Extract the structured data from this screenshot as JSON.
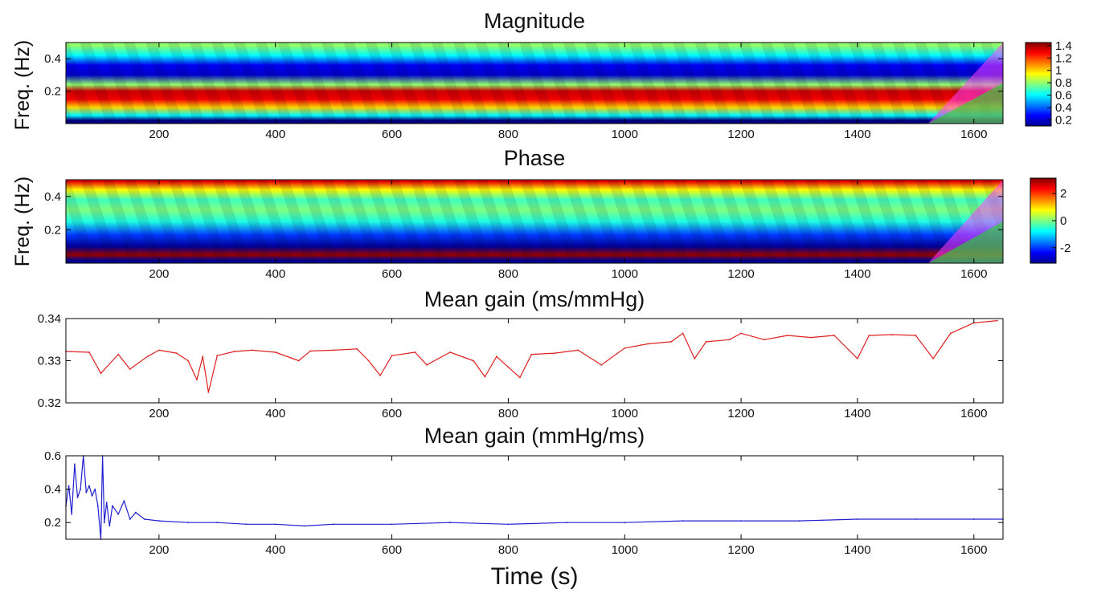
{
  "chart_data": [
    {
      "type": "heatmap",
      "title": "Magnitude",
      "ylabel": "Freq. (Hz)",
      "xlim": [
        40,
        1650
      ],
      "ylim": [
        0,
        0.5
      ],
      "xticks": [
        200,
        400,
        600,
        800,
        1000,
        1200,
        1400,
        1600
      ],
      "yticks": [
        0.2,
        0.4
      ],
      "bands": [
        {
          "freq": 0.02,
          "value": 0.1
        },
        {
          "freq": 0.05,
          "value": 0.6
        },
        {
          "freq": 0.1,
          "value": 1.0
        },
        {
          "freq": 0.15,
          "value": 1.3
        },
        {
          "freq": 0.2,
          "value": 1.35
        },
        {
          "freq": 0.24,
          "value": 0.8
        },
        {
          "freq": 0.3,
          "value": 0.2
        },
        {
          "freq": 0.36,
          "value": 0.25
        },
        {
          "freq": 0.42,
          "value": 0.6
        },
        {
          "freq": 0.48,
          "value": 0.8
        }
      ],
      "colorbar": {
        "ticks": [
          "1.4",
          "1.2",
          "1",
          "0.8",
          "0.6",
          "0.4",
          "0.2"
        ],
        "min": 0.1,
        "max": 1.45
      }
    },
    {
      "type": "heatmap",
      "title": "Phase",
      "ylabel": "Freq. (Hz)",
      "xlim": [
        40,
        1650
      ],
      "ylim": [
        0,
        0.5
      ],
      "xticks": [
        200,
        400,
        600,
        800,
        1000,
        1200,
        1400,
        1600
      ],
      "yticks": [
        0.2,
        0.4
      ],
      "bands": [
        {
          "freq": 0.015,
          "value": -3.0
        },
        {
          "freq": 0.05,
          "value": 3.0
        },
        {
          "freq": 0.1,
          "value": -3.0
        },
        {
          "freq": 0.17,
          "value": -2.0
        },
        {
          "freq": 0.25,
          "value": -0.6
        },
        {
          "freq": 0.32,
          "value": 0.0
        },
        {
          "freq": 0.38,
          "value": -0.4
        },
        {
          "freq": 0.44,
          "value": 0.8
        },
        {
          "freq": 0.49,
          "value": 2.5
        }
      ],
      "colorbar": {
        "ticks": [
          "2",
          "0",
          "-2"
        ],
        "tick_values": [
          2,
          0,
          -2
        ],
        "min": -3.14,
        "max": 3.14
      }
    },
    {
      "type": "line",
      "title": "Mean gain (ms/mmHg)",
      "xlim": [
        40,
        1650
      ],
      "ylim": [
        0.32,
        0.34
      ],
      "xticks": [
        200,
        400,
        600,
        800,
        1000,
        1200,
        1400,
        1600
      ],
      "yticks": [
        0.32,
        0.33,
        0.34
      ],
      "color": "#e02020",
      "x": [
        40,
        80,
        100,
        130,
        150,
        180,
        200,
        230,
        250,
        265,
        275,
        285,
        300,
        330,
        360,
        400,
        440,
        460,
        500,
        540,
        560,
        580,
        600,
        640,
        660,
        700,
        740,
        760,
        780,
        800,
        820,
        840,
        880,
        920,
        960,
        1000,
        1040,
        1080,
        1100,
        1120,
        1140,
        1180,
        1200,
        1240,
        1280,
        1320,
        1360,
        1400,
        1420,
        1460,
        1500,
        1530,
        1560,
        1600,
        1640
      ],
      "values": [
        0.3322,
        0.332,
        0.327,
        0.3315,
        0.328,
        0.331,
        0.3325,
        0.3318,
        0.33,
        0.3255,
        0.331,
        0.3225,
        0.3312,
        0.3322,
        0.3325,
        0.332,
        0.33,
        0.3323,
        0.3325,
        0.3328,
        0.33,
        0.3265,
        0.3312,
        0.332,
        0.329,
        0.332,
        0.33,
        0.3262,
        0.331,
        0.3285,
        0.326,
        0.3315,
        0.3318,
        0.3325,
        0.329,
        0.333,
        0.334,
        0.3345,
        0.3365,
        0.3305,
        0.3345,
        0.335,
        0.3365,
        0.335,
        0.336,
        0.3355,
        0.336,
        0.3305,
        0.336,
        0.3362,
        0.336,
        0.3305,
        0.3365,
        0.339,
        0.3395
      ]
    },
    {
      "type": "line",
      "title": "Mean gain (mmHg/ms)",
      "xlabel": "Time (s)",
      "xlim": [
        40,
        1650
      ],
      "ylim": [
        0.1,
        0.6
      ],
      "xticks": [
        200,
        400,
        600,
        800,
        1000,
        1200,
        1400,
        1600
      ],
      "yticks": [
        0.2,
        0.4,
        0.6
      ],
      "color": "#2020d0",
      "x": [
        40,
        45,
        50,
        55,
        60,
        65,
        70,
        75,
        80,
        85,
        90,
        95,
        100,
        103,
        106,
        110,
        115,
        120,
        130,
        140,
        150,
        160,
        175,
        200,
        250,
        300,
        350,
        400,
        450,
        500,
        600,
        700,
        800,
        900,
        1000,
        1100,
        1200,
        1300,
        1400,
        1500,
        1600,
        1650
      ],
      "values": [
        0.3,
        0.42,
        0.25,
        0.55,
        0.35,
        0.4,
        0.6,
        0.38,
        0.42,
        0.36,
        0.4,
        0.3,
        0.1,
        0.6,
        0.2,
        0.32,
        0.18,
        0.3,
        0.25,
        0.33,
        0.22,
        0.26,
        0.22,
        0.21,
        0.2,
        0.2,
        0.19,
        0.19,
        0.18,
        0.19,
        0.19,
        0.2,
        0.19,
        0.2,
        0.2,
        0.21,
        0.21,
        0.21,
        0.22,
        0.22,
        0.22,
        0.22
      ]
    }
  ]
}
